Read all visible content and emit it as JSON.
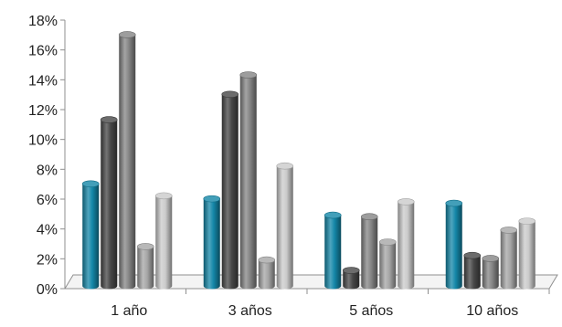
{
  "chart_data": {
    "type": "bar",
    "title": "",
    "xlabel": "",
    "ylabel": "",
    "categories": [
      "1 año",
      "3 años",
      "5 años",
      "10 años"
    ],
    "ylim": [
      0,
      18
    ],
    "y_ticks": [
      0,
      2,
      4,
      6,
      8,
      10,
      12,
      14,
      16,
      18
    ],
    "y_tick_labels": [
      "0%",
      "2%",
      "4%",
      "6%",
      "8%",
      "10%",
      "12%",
      "14%",
      "16%",
      "18%"
    ],
    "grid": false,
    "legend": "none",
    "style": "3d-cylinder",
    "series": [
      {
        "color": "#1487a8",
        "values": [
          6.9,
          5.9,
          4.8,
          5.6
        ]
      },
      {
        "color": "#474747",
        "values": [
          11.2,
          12.9,
          1.1,
          2.1
        ]
      },
      {
        "color": "#858585",
        "values": [
          16.9,
          14.2,
          4.7,
          1.9
        ]
      },
      {
        "color": "#a6a6a6",
        "values": [
          2.7,
          1.8,
          3.0,
          3.8
        ]
      },
      {
        "color": "#cbcbcb",
        "values": [
          6.1,
          8.1,
          5.7,
          4.4
        ]
      }
    ]
  }
}
